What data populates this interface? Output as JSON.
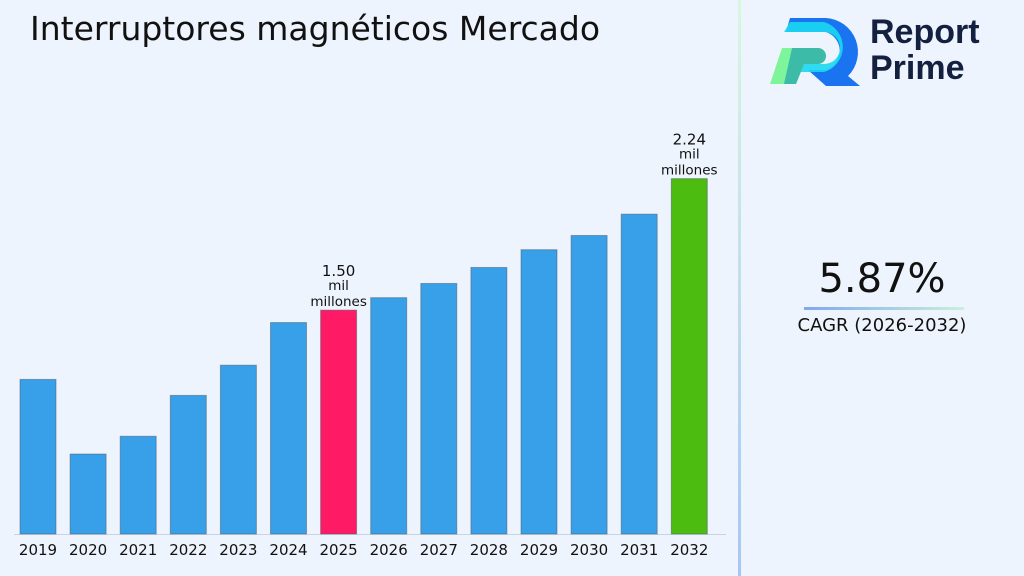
{
  "title": "Interruptores magnéticos Mercado",
  "brand": {
    "line1": "Report",
    "line2": "Prime"
  },
  "cagr": {
    "value": "5.87%",
    "label": "CAGR (2026-2032)"
  },
  "colors": {
    "default_bar": "#38a0e8",
    "highlight_2025": "#ff1a66",
    "highlight_2032": "#4cbd10",
    "background": "#eef4fd"
  },
  "chart_data": {
    "type": "bar",
    "title": "Interruptores magnéticos Mercado",
    "categories": [
      "2019",
      "2020",
      "2021",
      "2022",
      "2023",
      "2024",
      "2025",
      "2026",
      "2027",
      "2028",
      "2029",
      "2030",
      "2031",
      "2032"
    ],
    "values": [
      1.11,
      0.69,
      0.79,
      1.02,
      1.19,
      1.43,
      1.5,
      1.57,
      1.65,
      1.74,
      1.84,
      1.92,
      2.04,
      2.24
    ],
    "unit": "mil millones",
    "data_labels": [
      {
        "category": "2025",
        "lines": [
          "1.50",
          "mil",
          "millones"
        ]
      },
      {
        "category": "2032",
        "lines": [
          "2.24",
          "mil",
          "millones"
        ]
      }
    ],
    "ylim": [
      0.24,
      2.57
    ],
    "grid": false,
    "y_axis_visible": false
  }
}
